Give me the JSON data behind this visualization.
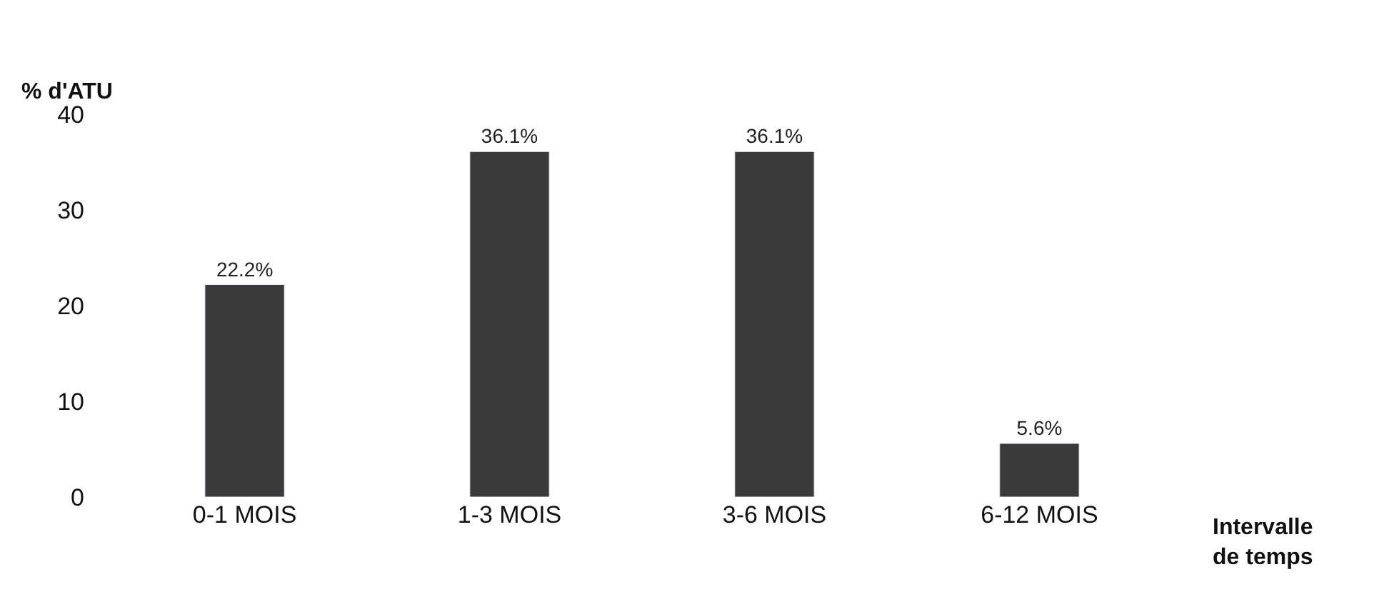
{
  "chart_data": {
    "type": "bar",
    "ylabel": "% d'ATU",
    "xlabel": "Intervalle de temps",
    "categories": [
      "0-1 MOIS",
      "1-3 MOIS",
      "3-6 MOIS",
      "6-12 MOIS"
    ],
    "values": [
      22.2,
      36.1,
      36.1,
      5.6
    ],
    "value_labels": [
      "22.2%",
      "36.1%",
      "36.1%",
      "5.6%"
    ],
    "color": "#3a3a3a",
    "ylim": [
      0,
      40
    ],
    "yticks": [
      0,
      10,
      20,
      30,
      40
    ]
  }
}
